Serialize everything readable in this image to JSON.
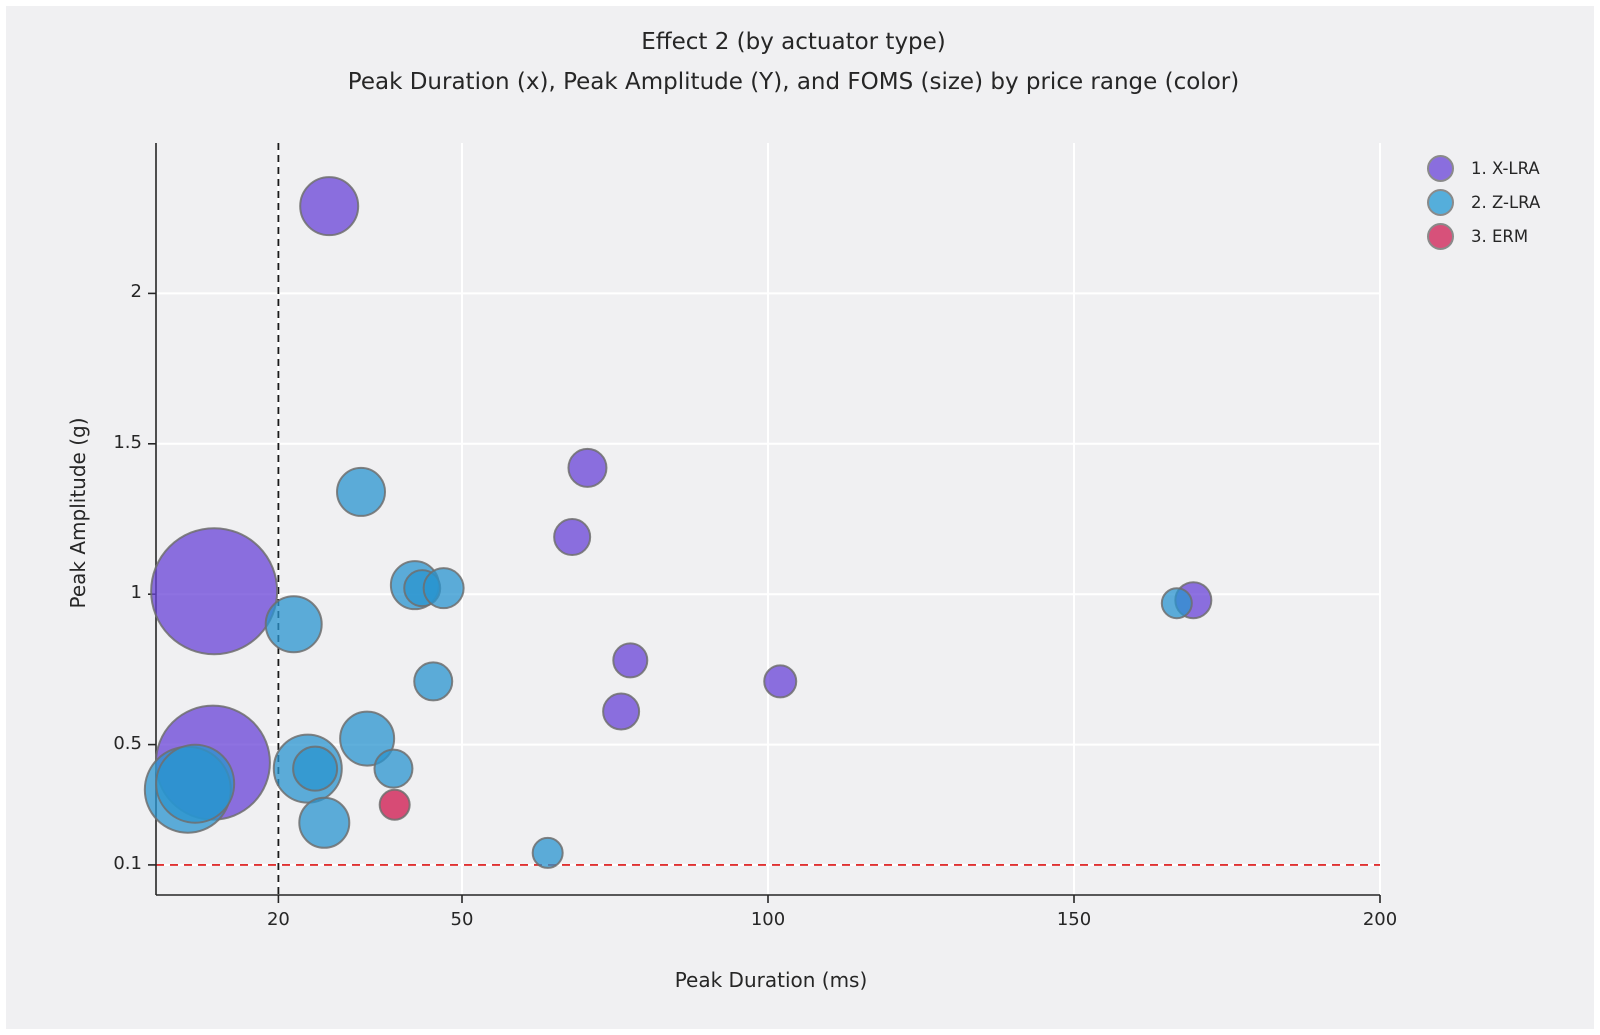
{
  "chart": {
    "title": "Effect 2 (by actuator type)",
    "subtitle": "Peak Duration (x), Peak Amplitude (Y), and FOMS (size) by price range (color)",
    "x_axis": {
      "label": "Peak Duration (ms)",
      "tick_labels": [
        "20",
        "50",
        "100",
        "150",
        "200"
      ]
    },
    "y_axis": {
      "label": "Peak Amplitude (g)",
      "tick_labels": [
        "0.1",
        "0.5",
        "1",
        "1.5",
        "2"
      ]
    }
  },
  "legend": {
    "items": [
      {
        "label": "1. X-LRA",
        "color": "#8A6EDE"
      },
      {
        "label": "2. Z-LRA",
        "color": "#55AEDB"
      },
      {
        "label": "3. ERM",
        "color": "#D7517A"
      }
    ]
  },
  "colors": {
    "background": "#f0f0f2",
    "gridline": "#ffffff",
    "spine": "#262626",
    "bubble_stroke": "#6e6e6e",
    "ref_line_x_color": "#1a1a1a",
    "ref_line_y_color": "#e03131"
  },
  "chart_data": {
    "type": "scatter",
    "title": "Effect 2 (by actuator type)",
    "subtitle": "Peak Duration (x), Peak Amplitude (Y), and FOMS (size) by price range (color)",
    "xlabel": "Peak Duration (ms)",
    "ylabel": "Peak Amplitude (g)",
    "x_ticks": [
      20,
      50,
      100,
      150,
      200
    ],
    "y_ticks": [
      0.1,
      0.5,
      1,
      1.5,
      2
    ],
    "layout": {
      "x_range": [
        0,
        200
      ],
      "y_range": [
        0,
        2.5
      ],
      "grid": true,
      "legend_position": "top-right"
    },
    "size_legend": "FOMS (bubble size)",
    "reference_lines": [
      {
        "axis": "x",
        "value": 20,
        "style": "dashed",
        "color": "#1a1a1a"
      },
      {
        "axis": "y",
        "value": 0.1,
        "style": "dashed",
        "color": "#e03131"
      }
    ],
    "series": [
      {
        "name": "1. X-LRA",
        "fill": "rgba(104,67,215,0.75)",
        "points": [
          {
            "x": 28.3,
            "y": 2.29,
            "r": 29
          },
          {
            "x": 9.5,
            "y": 1.01,
            "r": 63
          },
          {
            "x": 9.3,
            "y": 0.44,
            "r": 57
          },
          {
            "x": 70.5,
            "y": 1.42,
            "r": 19
          },
          {
            "x": 68.0,
            "y": 1.19,
            "r": 18
          },
          {
            "x": 77.5,
            "y": 0.78,
            "r": 17
          },
          {
            "x": 76.0,
            "y": 0.61,
            "r": 18
          },
          {
            "x": 102.0,
            "y": 0.71,
            "r": 16
          },
          {
            "x": 169.5,
            "y": 0.98,
            "r": 18
          }
        ]
      },
      {
        "name": "2. Z-LRA",
        "fill": "rgba(41,148,207,0.75)",
        "points": [
          {
            "x": 5.2,
            "y": 0.35,
            "r": 43
          },
          {
            "x": 6.4,
            "y": 0.37,
            "r": 39
          },
          {
            "x": 33.5,
            "y": 1.34,
            "r": 24
          },
          {
            "x": 22.5,
            "y": 0.9,
            "r": 28
          },
          {
            "x": 42.3,
            "y": 1.03,
            "r": 24
          },
          {
            "x": 43.5,
            "y": 1.02,
            "r": 18
          },
          {
            "x": 47.0,
            "y": 1.02,
            "r": 20
          },
          {
            "x": 45.3,
            "y": 0.71,
            "r": 19
          },
          {
            "x": 34.5,
            "y": 0.52,
            "r": 27
          },
          {
            "x": 38.8,
            "y": 0.42,
            "r": 19
          },
          {
            "x": 24.8,
            "y": 0.42,
            "r": 34
          },
          {
            "x": 26.0,
            "y": 0.42,
            "r": 22
          },
          {
            "x": 27.5,
            "y": 0.24,
            "r": 25
          },
          {
            "x": 64.0,
            "y": 0.14,
            "r": 15
          },
          {
            "x": 166.8,
            "y": 0.97,
            "r": 15
          }
        ]
      },
      {
        "name": "3. ERM",
        "fill": "rgba(207,28,82,0.78)",
        "points": [
          {
            "x": 39.0,
            "y": 0.3,
            "r": 15
          }
        ]
      }
    ]
  }
}
